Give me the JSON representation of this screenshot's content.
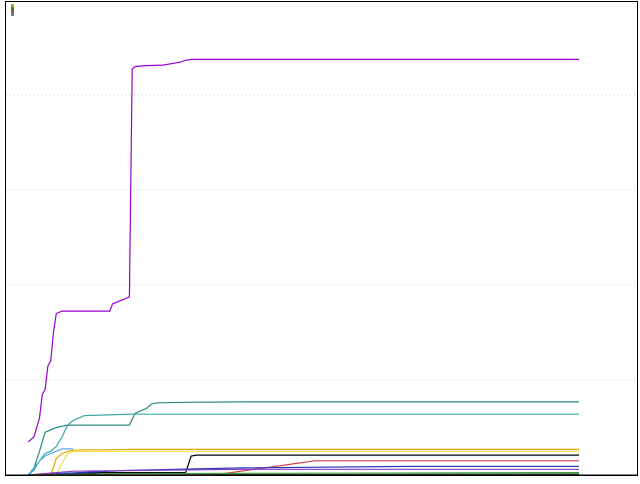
{
  "chart_data": {
    "type": "line",
    "title": "",
    "xlabel": "",
    "ylabel": "",
    "xlim": [
      0,
      100
    ],
    "ylim": [
      0,
      100
    ],
    "grid": {
      "horizontal": true,
      "vertical": false,
      "style": "dotted"
    },
    "gridlines_y": [
      20,
      40,
      60,
      80
    ],
    "legend": "top-left",
    "legend_colors": [
      "#c0a000",
      "#2a8a2a",
      "#b05050",
      "#7a7a7a"
    ],
    "series": [
      {
        "color": "#9900cc",
        "x": [
          2,
          2.5,
          3,
          4,
          4.5,
          5,
          5.5,
          6,
          6.5,
          7,
          8,
          16.5,
          17,
          18,
          19,
          20,
          20.5,
          20.7,
          21,
          23,
          26,
          28,
          29,
          30,
          31,
          100
        ],
        "y": [
          7,
          7.5,
          8,
          12,
          17,
          18,
          23,
          24,
          30,
          34,
          34.5,
          34.5,
          36,
          36.5,
          37,
          37.5,
          85.5,
          85.6,
          86,
          86.2,
          86.3,
          86.7,
          86.9,
          87.3,
          87.5,
          87.5
        ]
      },
      {
        "color": "#2a8a80",
        "x": [
          2,
          3,
          4,
          5,
          7,
          9,
          10,
          12,
          20,
          21,
          22,
          23,
          24,
          25,
          30,
          40,
          100
        ],
        "y": [
          0,
          1.5,
          5,
          9,
          10,
          10.5,
          10.5,
          10.5,
          10.5,
          13,
          13.5,
          14,
          15,
          15.2,
          15.3,
          15.4,
          15.4
        ]
      },
      {
        "color": "#3aa8a8",
        "x": [
          2,
          3,
          4,
          5,
          6,
          7,
          8,
          9,
          10,
          12,
          20,
          100
        ],
        "y": [
          0,
          1,
          3,
          4.5,
          5,
          6,
          8,
          10.5,
          11.5,
          12.5,
          12.8,
          12.8
        ]
      },
      {
        "color": "#5aa8e8",
        "x": [
          2,
          4,
          5,
          6,
          7,
          8,
          9,
          10
        ],
        "y": [
          0,
          3,
          4,
          4.5,
          5,
          5.5,
          5.5,
          5.5
        ]
      },
      {
        "color": "#e8a800",
        "x": [
          6,
          7,
          8,
          9,
          10,
          12,
          15,
          20,
          30,
          100
        ],
        "y": [
          0,
          3.5,
          4.5,
          5,
          5.2,
          5.3,
          5.3,
          5.4,
          5.4,
          5.4
        ]
      },
      {
        "color": "#f0e040",
        "x": [
          7,
          8,
          9,
          10,
          14,
          100
        ],
        "y": [
          0,
          2.5,
          4.5,
          5,
          5,
          5
        ]
      },
      {
        "color": "#000000",
        "x": [
          2,
          15,
          30,
          31,
          32,
          35,
          100
        ],
        "y": [
          0,
          0.5,
          0.5,
          4,
          4.2,
          4.2,
          4.2
        ]
      },
      {
        "color": "#d04040",
        "x": [
          2,
          35,
          53,
          100
        ],
        "y": [
          0,
          0,
          3.0,
          3.0
        ]
      },
      {
        "color": "#2a3ac0",
        "x": [
          2,
          20,
          40,
          70,
          100
        ],
        "y": [
          0,
          1,
          1.5,
          1.8,
          1.8
        ]
      },
      {
        "color": "#8a3ac0",
        "x": [
          2,
          10,
          40,
          100
        ],
        "y": [
          0,
          0.8,
          1.2,
          1.2
        ]
      },
      {
        "color": "#3aa040",
        "x": [
          2,
          20,
          100
        ],
        "y": [
          0,
          0.3,
          0.5
        ]
      },
      {
        "color": "#444444",
        "x": [
          2,
          100
        ],
        "y": [
          0,
          0.2
        ]
      }
    ]
  }
}
